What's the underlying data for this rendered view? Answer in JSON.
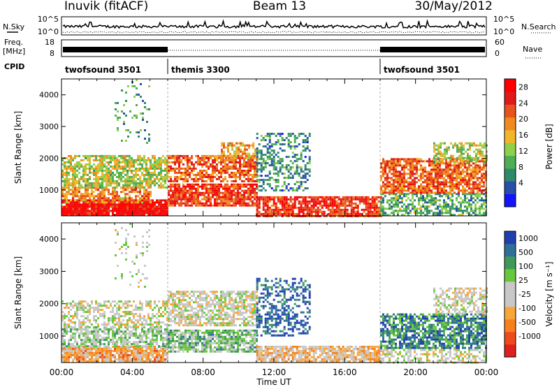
{
  "header": {
    "station": "Inuvik (fitACF)",
    "beam": "Beam 13",
    "date": "30/May/2012"
  },
  "nsky_panel": {
    "left_label": "N.Sky",
    "right_label": "N.Search",
    "left_ticks": [
      "10^5",
      "10^0"
    ],
    "right_ticks": [
      "10^5",
      "10^0"
    ]
  },
  "freq_panel": {
    "left_label_1": "Freq.",
    "left_label_2": "[MHz]",
    "right_label": "Nave",
    "left_ticks": [
      "18",
      "8"
    ],
    "right_ticks": [
      "60",
      "0"
    ]
  },
  "cpid": {
    "label": "CPID",
    "segments": [
      {
        "name": "twofsound 3501",
        "start_h": 0,
        "end_h": 6
      },
      {
        "name": "themis 3300",
        "start_h": 6,
        "end_h": 18
      },
      {
        "name": "twofsound 3501",
        "start_h": 18,
        "end_h": 24
      }
    ]
  },
  "power_colorbar": {
    "label": "Power [dB]",
    "colors": [
      "#1414ff",
      "#2a4fa8",
      "#2f8a6a",
      "#4fae53",
      "#8fcf4a",
      "#f2b62a",
      "#f08a1e",
      "#e8521c",
      "#e01a1a",
      "#ff0000"
    ],
    "tick_labels": [
      "4",
      "8",
      "12",
      "16",
      "20",
      "24",
      "28"
    ]
  },
  "velocity_colorbar": {
    "label": "Velocity [m s⁻¹]",
    "colors": [
      "#e02020",
      "#ef4a1e",
      "#f77f1c",
      "#f7a73a",
      "#c8c8c8",
      "#c8c8c8",
      "#68c83c",
      "#3f9a5a",
      "#2f6f9a",
      "#2040b0"
    ],
    "tick_labels": [
      "-1000",
      "-500",
      "-100",
      "-25",
      "25",
      "100",
      "500",
      "1000"
    ]
  },
  "x_axis": {
    "label": "Time UT",
    "tick_labels": [
      "00:00",
      "04:00",
      "08:00",
      "12:00",
      "16:00",
      "20:00",
      "00:00"
    ]
  },
  "chart_data": [
    {
      "type": "heatmap",
      "title": "",
      "xlabel": "Time UT",
      "ylabel": "Slant Range [km]",
      "xlim": [
        0,
        24
      ],
      "ylim": [
        180,
        4500
      ],
      "y_ticks": [
        1000,
        2000,
        3000,
        4000
      ],
      "y_tick_labels": [
        "1000",
        "2000",
        "3000",
        "4000"
      ],
      "color_quantity": "Power [dB]",
      "color_range": [
        0,
        30
      ],
      "scatter_regions": [
        {
          "t0": 0,
          "t1": 6,
          "r0": 200,
          "r1": 700,
          "value": 28,
          "density": 0.95
        },
        {
          "t0": 0,
          "t1": 5,
          "r0": 600,
          "r1": 1100,
          "value": 20,
          "density": 0.7
        },
        {
          "t0": 0,
          "t1": 6,
          "r0": 1100,
          "r1": 2100,
          "value": 14,
          "density": 0.75
        },
        {
          "t0": 6,
          "t1": 11,
          "r0": 500,
          "r1": 1200,
          "value": 24,
          "density": 0.85
        },
        {
          "t0": 6,
          "t1": 11,
          "r0": 1300,
          "r1": 2100,
          "value": 22,
          "density": 0.7
        },
        {
          "t0": 9,
          "t1": 11,
          "r0": 2000,
          "r1": 2500,
          "value": 18,
          "density": 0.6
        },
        {
          "t0": 11,
          "t1": 18,
          "r0": 200,
          "r1": 800,
          "value": 25,
          "density": 0.8
        },
        {
          "t0": 11,
          "t1": 14,
          "r0": 1000,
          "r1": 2800,
          "value": 8,
          "density": 0.45
        },
        {
          "t0": 18,
          "t1": 24,
          "r0": 200,
          "r1": 900,
          "value": 10,
          "density": 0.6
        },
        {
          "t0": 18,
          "t1": 24,
          "r0": 900,
          "r1": 2000,
          "value": 22,
          "density": 0.8
        },
        {
          "t0": 21,
          "t1": 24,
          "r0": 1900,
          "r1": 2500,
          "value": 14,
          "density": 0.55
        },
        {
          "t0": 3,
          "t1": 5,
          "r0": 2500,
          "r1": 4500,
          "value": 10,
          "density": 0.12
        }
      ]
    },
    {
      "type": "heatmap",
      "title": "",
      "xlabel": "Time UT",
      "ylabel": "Slant Range [km]",
      "xlim": [
        0,
        24
      ],
      "ylim": [
        180,
        4500
      ],
      "y_ticks": [
        1000,
        2000,
        3000,
        4000
      ],
      "y_tick_labels": [
        "1000",
        "2000",
        "3000",
        "4000"
      ],
      "color_quantity": "Velocity [m s⁻¹]",
      "color_range": [
        -1000,
        1000
      ],
      "scatter_regions": [
        {
          "t0": 0,
          "t1": 6,
          "r0": 200,
          "r1": 700,
          "value": -300,
          "density": 0.9
        },
        {
          "t0": 0,
          "t1": 6,
          "r0": 700,
          "r1": 1300,
          "value": 150,
          "density": 0.7
        },
        {
          "t0": 0,
          "t1": 6,
          "r0": 1300,
          "r1": 2100,
          "value": 0,
          "density": 0.55
        },
        {
          "t0": 6,
          "t1": 11,
          "r0": 500,
          "r1": 1200,
          "value": 300,
          "density": 0.8
        },
        {
          "t0": 6,
          "t1": 11,
          "r0": 1300,
          "r1": 2400,
          "value": 0,
          "density": 0.7
        },
        {
          "t0": 11,
          "t1": 18,
          "r0": 200,
          "r1": 700,
          "value": -200,
          "density": 0.8
        },
        {
          "t0": 11,
          "t1": 14,
          "r0": 1000,
          "r1": 2800,
          "value": 800,
          "density": 0.45
        },
        {
          "t0": 18,
          "t1": 24,
          "r0": 600,
          "r1": 1700,
          "value": 600,
          "density": 0.75
        },
        {
          "t0": 18,
          "t1": 24,
          "r0": 200,
          "r1": 600,
          "value": 0,
          "density": 0.5
        },
        {
          "t0": 21,
          "t1": 24,
          "r0": 1700,
          "r1": 2500,
          "value": 0,
          "density": 0.5
        },
        {
          "t0": 3,
          "t1": 5,
          "r0": 2500,
          "r1": 4500,
          "value": 50,
          "density": 0.12
        }
      ]
    }
  ]
}
